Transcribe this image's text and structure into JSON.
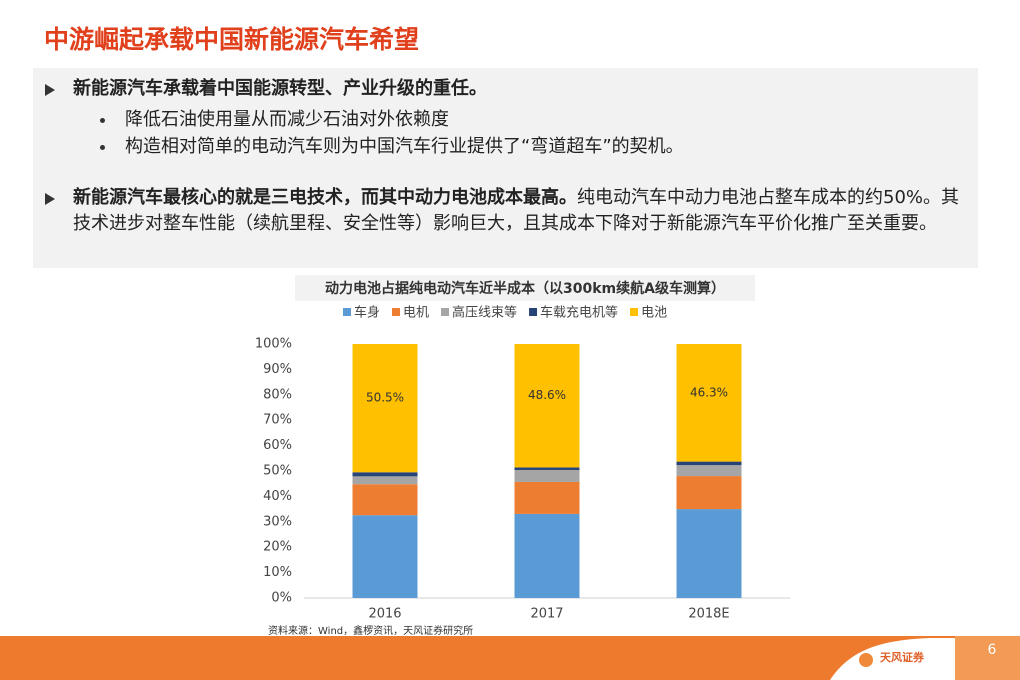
{
  "title": "中游崛起承载中国新能源汽车希望",
  "bullets": [
    {
      "parts": [
        {
          "text": "新能源汽车承载着中国能源转型、产业升级的重任。",
          "bold": true
        }
      ],
      "subs": [
        "降低石油使用量从而减少石油对外依赖度",
        "构造相对简单的电动汽车则为中国汽车行业提供了“弯道超车”的契机。"
      ]
    },
    {
      "parts": [
        {
          "text": "新能源汽车最核心的就是三电技术，而其中动力电池成本最高。",
          "bold": true
        },
        {
          "text": "纯电动汽车中动力电池占整车成本的约50%。其技术进步对整车性能（续航里程、安全性等）影响巨大，且其成本下降对于新能源汽车平价化推广至关重要。",
          "bold": false
        }
      ]
    }
  ],
  "chart_data": {
    "type": "stacked_bar",
    "title": "动力电池占据纯电动汽车近半成本（以300km续航A级车测算）",
    "categories": [
      "2016",
      "2017",
      "2018E"
    ],
    "series": [
      {
        "name": "车身",
        "color": "#5b9bd5",
        "values": [
          32.6,
          33.1,
          35.0
        ]
      },
      {
        "name": "电机",
        "color": "#ed7d31",
        "values": [
          12.2,
          12.6,
          13.0
        ]
      },
      {
        "name": "高压线束等",
        "color": "#a5a5a5",
        "values": [
          3.1,
          4.7,
          4.3
        ]
      },
      {
        "name": "车载充电机等",
        "color": "#264478",
        "values": [
          1.6,
          1.0,
          1.4
        ]
      },
      {
        "name": "电池",
        "color": "#ffc000",
        "values": [
          50.5,
          48.6,
          46.3
        ],
        "value_labels": [
          "50.5%",
          "48.6%",
          "46.3%"
        ]
      }
    ],
    "ylim": [
      0,
      100
    ],
    "yticks": [
      {
        "value": 0,
        "label": "0%"
      },
      {
        "value": 10,
        "label": "10%"
      },
      {
        "value": 20,
        "label": "20%"
      },
      {
        "value": 30,
        "label": "30%"
      },
      {
        "value": 40,
        "label": "40%"
      },
      {
        "value": 50,
        "label": "50%"
      },
      {
        "value": 60,
        "label": "60%"
      },
      {
        "value": 70,
        "label": "70%"
      },
      {
        "value": 80,
        "label": "80%"
      },
      {
        "value": 90,
        "label": "90%"
      },
      {
        "value": 100,
        "label": "100%"
      }
    ],
    "source": "资料来源：Wind，鑫椤资讯，天风证券研究所"
  },
  "logo": "天风证券",
  "page_number": "6"
}
